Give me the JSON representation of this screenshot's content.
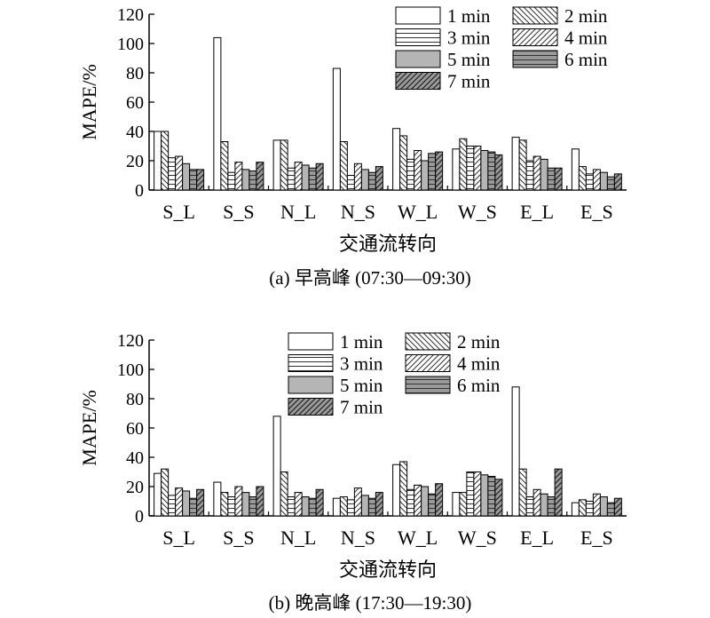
{
  "chart_data": [
    {
      "type": "bar",
      "caption": "(a) 早高峰 (07:30—09:30)",
      "xlabel": "交通流转向",
      "ylabel": "MAPE/%",
      "ylim": [
        0,
        120
      ],
      "yticks": [
        0,
        20,
        40,
        60,
        80,
        100,
        120
      ],
      "categories": [
        "S_L",
        "S_S",
        "N_L",
        "N_S",
        "W_L",
        "W_S",
        "E_L",
        "E_S"
      ],
      "grid": false,
      "legend_position": "top-right",
      "series": [
        {
          "name": "1 min",
          "pattern": "white",
          "values": [
            40,
            104,
            34,
            83,
            42,
            28,
            36,
            28
          ]
        },
        {
          "name": "2 min",
          "pattern": "backdiag",
          "values": [
            40,
            33,
            34,
            33,
            37,
            35,
            34,
            16
          ]
        },
        {
          "name": "3 min",
          "pattern": "hlines",
          "values": [
            22,
            12,
            15,
            10,
            21,
            30,
            20,
            11
          ]
        },
        {
          "name": "4 min",
          "pattern": "fwddiag",
          "values": [
            23,
            19,
            19,
            18,
            27,
            30,
            23,
            14
          ]
        },
        {
          "name": "5 min",
          "pattern": "gray",
          "values": [
            18,
            14,
            17,
            14,
            20,
            27,
            21,
            12
          ]
        },
        {
          "name": "6 min",
          "pattern": "grayhl",
          "values": [
            14,
            13,
            15,
            12,
            25,
            26,
            15,
            9
          ]
        },
        {
          "name": "7 min",
          "pattern": "graydiag",
          "values": [
            14,
            19,
            18,
            16,
            26,
            24,
            15,
            11
          ]
        }
      ]
    },
    {
      "type": "bar",
      "caption": "(b) 晚高峰 (17:30—19:30)",
      "xlabel": "交通流转向",
      "ylabel": "MAPE/%",
      "ylim": [
        0,
        120
      ],
      "yticks": [
        0,
        20,
        40,
        60,
        80,
        100,
        120
      ],
      "categories": [
        "S_L",
        "S_S",
        "N_L",
        "N_S",
        "W_L",
        "W_S",
        "E_L",
        "E_S"
      ],
      "grid": false,
      "legend_position": "top-right",
      "series": [
        {
          "name": "1 min",
          "pattern": "white",
          "values": [
            29,
            23,
            68,
            12,
            35,
            16,
            88,
            9
          ]
        },
        {
          "name": "2 min",
          "pattern": "backdiag",
          "values": [
            32,
            16,
            30,
            13,
            37,
            16,
            32,
            11
          ]
        },
        {
          "name": "3 min",
          "pattern": "hlines",
          "values": [
            14,
            13,
            13,
            11,
            18,
            30,
            13,
            10
          ]
        },
        {
          "name": "4 min",
          "pattern": "fwddiag",
          "values": [
            19,
            20,
            16,
            19,
            21,
            30,
            18,
            15
          ]
        },
        {
          "name": "5 min",
          "pattern": "gray",
          "values": [
            17,
            16,
            13,
            14,
            20,
            28,
            15,
            13
          ]
        },
        {
          "name": "6 min",
          "pattern": "grayhl",
          "values": [
            12,
            13,
            12,
            12,
            15,
            27,
            13,
            9
          ]
        },
        {
          "name": "7 min",
          "pattern": "graydiag",
          "values": [
            18,
            20,
            18,
            16,
            22,
            25,
            32,
            12
          ]
        }
      ]
    }
  ],
  "colors": {
    "axis": "#000000",
    "white_fill": "#ffffff",
    "gray_fill": "#b5b5b5",
    "dark_gray_fill": "#8c8c8c",
    "hatch_stroke": "#333333"
  }
}
